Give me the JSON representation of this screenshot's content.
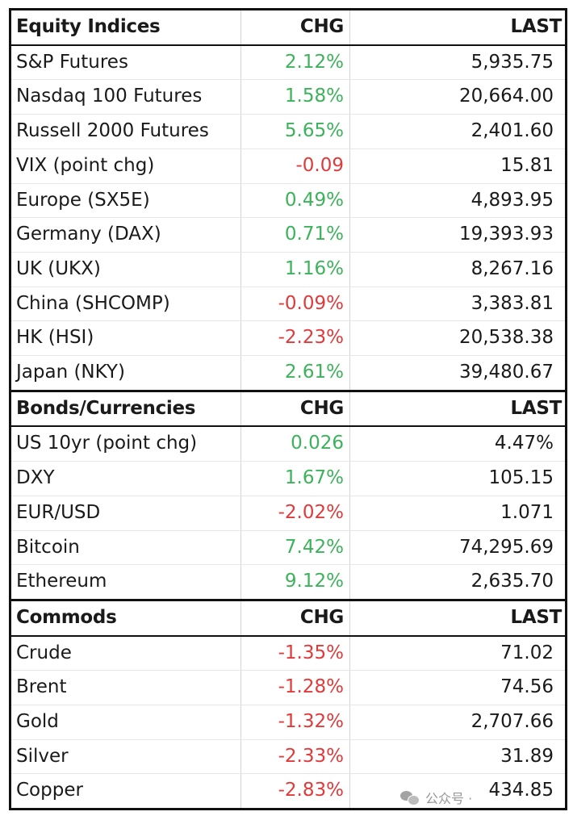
{
  "sections": [
    {
      "header": {
        "name": "Equity Indices",
        "chg": "CHG",
        "last": "LAST"
      },
      "rows": [
        {
          "name": "S&P Futures",
          "chg": "2.12%",
          "last": "5,935.75",
          "dir": "up"
        },
        {
          "name": "Nasdaq 100 Futures",
          "chg": "1.58%",
          "last": "20,664.00",
          "dir": "up"
        },
        {
          "name": "Russell 2000 Futures",
          "chg": "5.65%",
          "last": "2,401.60",
          "dir": "up"
        },
        {
          "name": "VIX (point chg)",
          "chg": "-0.09",
          "last": "15.81",
          "dir": "down"
        },
        {
          "name": "Europe (SX5E)",
          "chg": "0.49%",
          "last": "4,893.95",
          "dir": "up"
        },
        {
          "name": "Germany (DAX)",
          "chg": "0.71%",
          "last": "19,393.93",
          "dir": "up"
        },
        {
          "name": "UK (UKX)",
          "chg": "1.16%",
          "last": "8,267.16",
          "dir": "up"
        },
        {
          "name": "China (SHCOMP)",
          "chg": "-0.09%",
          "last": "3,383.81",
          "dir": "down"
        },
        {
          "name": "HK (HSI)",
          "chg": "-2.23%",
          "last": "20,538.38",
          "dir": "down"
        },
        {
          "name": "Japan (NKY)",
          "chg": "2.61%",
          "last": "39,480.67",
          "dir": "up"
        }
      ]
    },
    {
      "header": {
        "name": "Bonds/Currencies",
        "chg": "CHG",
        "last": "LAST"
      },
      "rows": [
        {
          "name": "US 10yr (point chg)",
          "chg": "0.026",
          "last": "4.47%",
          "dir": "up"
        },
        {
          "name": "DXY",
          "chg": "1.67%",
          "last": "105.15",
          "dir": "up"
        },
        {
          "name": "EUR/USD",
          "chg": "-2.02%",
          "last": "1.071",
          "dir": "down"
        },
        {
          "name": "Bitcoin",
          "chg": "7.42%",
          "last": "74,295.69",
          "dir": "up"
        },
        {
          "name": "Ethereum",
          "chg": "9.12%",
          "last": "2,635.70",
          "dir": "up"
        }
      ]
    },
    {
      "header": {
        "name": "Commods",
        "chg": "CHG",
        "last": "LAST"
      },
      "rows": [
        {
          "name": "Crude",
          "chg": "-1.35%",
          "last": "71.02",
          "dir": "down"
        },
        {
          "name": "Brent",
          "chg": "-1.28%",
          "last": "74.56",
          "dir": "down"
        },
        {
          "name": "Gold",
          "chg": "-1.32%",
          "last": "2,707.66",
          "dir": "down"
        },
        {
          "name": "Silver",
          "chg": "-2.33%",
          "last": "31.89",
          "dir": "down"
        },
        {
          "name": "Copper",
          "chg": "-2.83%",
          "last": "434.85",
          "dir": "down"
        }
      ]
    }
  ],
  "colors": {
    "positive": "#3cb25a",
    "negative": "#e03a3a",
    "border": "#111111"
  },
  "watermark": {
    "icon": "wechat-icon",
    "text": "公众号 ·"
  }
}
